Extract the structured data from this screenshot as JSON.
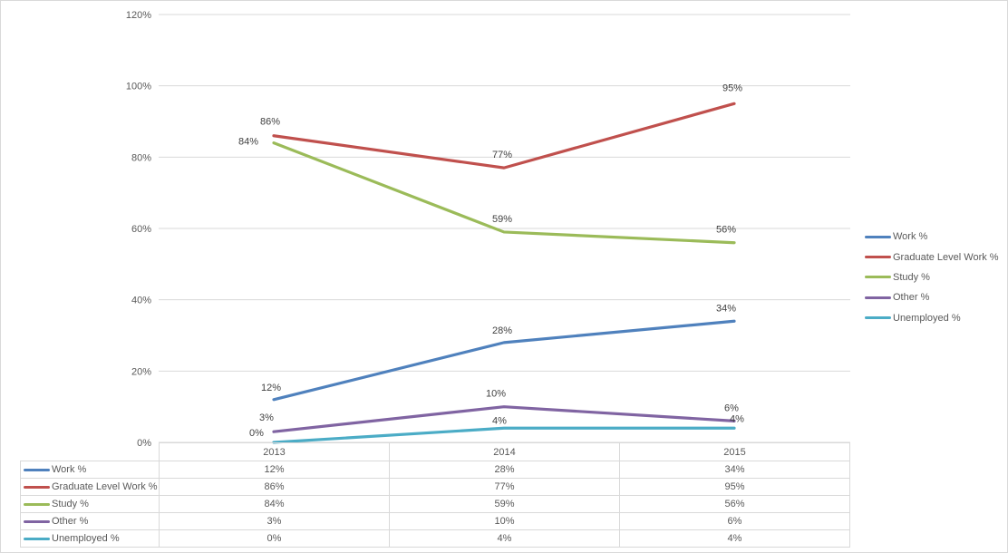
{
  "chart_data": {
    "type": "line",
    "title": "",
    "xlabel": "",
    "ylabel": "",
    "categories": [
      "2013",
      "2014",
      "2015"
    ],
    "series": [
      {
        "name": "Work %",
        "color": "#4F81BD",
        "values": [
          12,
          28,
          34
        ],
        "labels": [
          "12%",
          "28%",
          "34%"
        ]
      },
      {
        "name": "Graduate Level Work %",
        "color": "#C0504D",
        "values": [
          86,
          77,
          95
        ],
        "labels": [
          "86%",
          "77%",
          "95%"
        ]
      },
      {
        "name": "Study %",
        "color": "#9BBB59",
        "values": [
          84,
          59,
          56
        ],
        "labels": [
          "84%",
          "59%",
          "56%"
        ]
      },
      {
        "name": "Other %",
        "color": "#8064A2",
        "values": [
          3,
          10,
          6
        ],
        "labels": [
          "3%",
          "10%",
          "6%"
        ]
      },
      {
        "name": "Unemployed %",
        "color": "#4BACC6",
        "values": [
          0,
          4,
          4
        ],
        "labels": [
          "0%",
          "4%",
          "4%"
        ]
      }
    ],
    "ylim": [
      0,
      120
    ],
    "y_tick_step": 20,
    "y_tick_labels": [
      "0%",
      "20%",
      "40%",
      "60%",
      "80%",
      "100%",
      "120%"
    ],
    "grid": true,
    "legend_position": "right",
    "data_table_shown": true
  },
  "legend": {
    "items": [
      {
        "label": "Work %",
        "color": "#4F81BD"
      },
      {
        "label": "Graduate Level Work %",
        "color": "#C0504D"
      },
      {
        "label": "Study %",
        "color": "#9BBB59"
      },
      {
        "label": "Other %",
        "color": "#8064A2"
      },
      {
        "label": "Unemployed %",
        "color": "#4BACC6"
      }
    ]
  },
  "table": {
    "corner": "",
    "header": [
      "2013",
      "2014",
      "2015"
    ],
    "rows": [
      {
        "label": "Work %",
        "color": "#4F81BD",
        "cells": [
          "12%",
          "28%",
          "34%"
        ]
      },
      {
        "label": "Graduate Level Work %",
        "color": "#C0504D",
        "cells": [
          "86%",
          "77%",
          "95%"
        ]
      },
      {
        "label": "Study %",
        "color": "#9BBB59",
        "cells": [
          "84%",
          "59%",
          "56%"
        ]
      },
      {
        "label": "Other %",
        "color": "#8064A2",
        "cells": [
          "3%",
          "10%",
          "6%"
        ]
      },
      {
        "label": "Unemployed %",
        "color": "#4BACC6",
        "cells": [
          "0%",
          "4%",
          "4%"
        ]
      }
    ]
  },
  "colors": {
    "grid": "#d9d9d9",
    "border": "#d9d9d9",
    "axis_text": "#595959",
    "data_label_text": "#404040",
    "background": "#ffffff"
  }
}
